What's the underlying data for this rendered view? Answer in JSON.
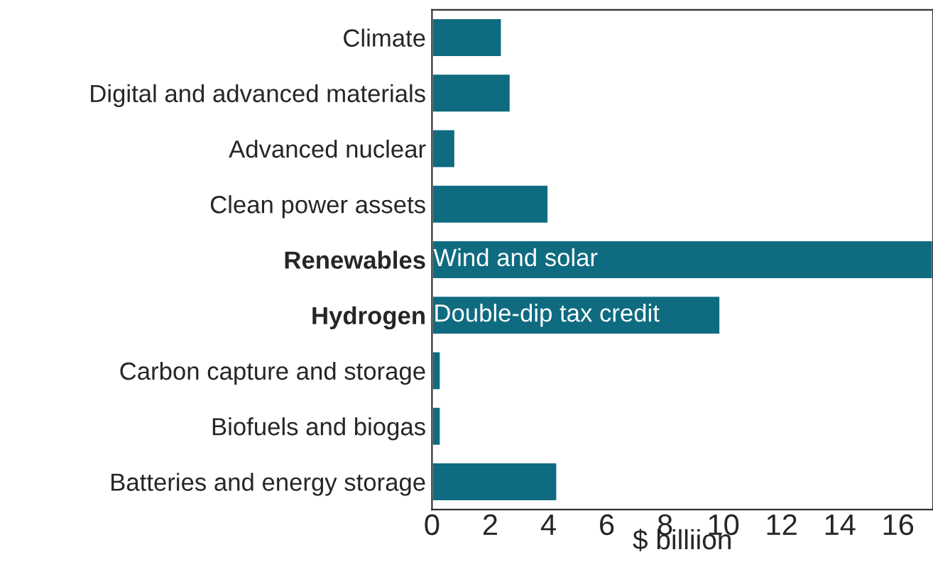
{
  "chart_data": {
    "type": "bar",
    "orientation": "horizontal",
    "xlabel": "$ billiion",
    "categories": [
      "Climate",
      "Digital and advanced materials",
      "Advanced nuclear",
      "Clean power assets",
      "Renewables",
      "Hydrogen",
      "Carbon capture and storage",
      "Biofuels and biogas",
      "Batteries and energy storage"
    ],
    "values": [
      2.4,
      2.7,
      0.8,
      4.0,
      17.2,
      9.9,
      0.3,
      0.3,
      4.3
    ],
    "color": "#0f6b80",
    "xlim": [
      0,
      17.2
    ],
    "xticks": [
      0,
      2,
      4,
      6,
      8,
      10,
      12,
      14,
      16
    ],
    "annotations": [
      {
        "text": "Wind and solar",
        "x": 0,
        "y": "Renewables"
      },
      {
        "text": "Double-dip tax credit",
        "x": 0,
        "y": "Hydrogen"
      }
    ],
    "grid": false,
    "legend": false
  }
}
